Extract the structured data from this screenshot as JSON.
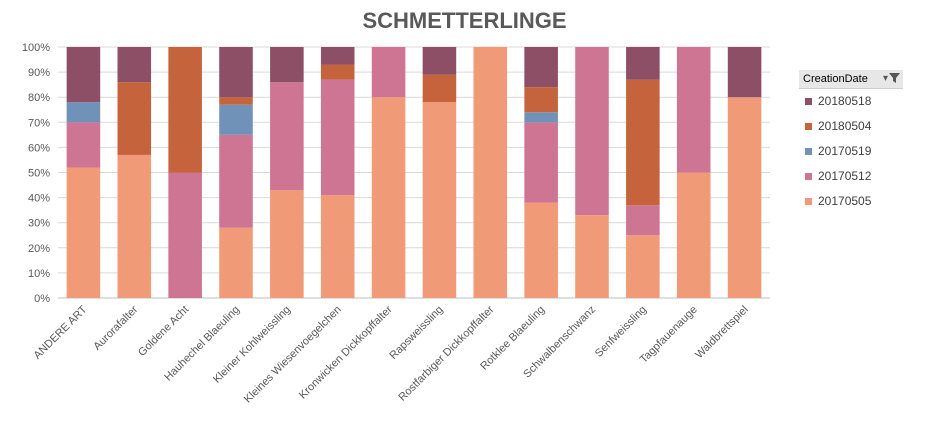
{
  "legend": {
    "title": "CreationDate",
    "filter_icon": "filter-dropdown-icon",
    "items": [
      {
        "label": "20180518",
        "color": "#8c4f66"
      },
      {
        "label": "20180504",
        "color": "#c5643c"
      },
      {
        "label": "20170519",
        "color": "#7192b8"
      },
      {
        "label": "20170512",
        "color": "#cd7592"
      },
      {
        "label": "20170505",
        "color": "#f19a78"
      }
    ]
  },
  "chart_data": {
    "type": "bar",
    "stacked": "percent",
    "title": "SCHMETTERLINGE",
    "xlabel": "",
    "ylabel": "",
    "ylim": [
      0,
      100
    ],
    "yticks": [
      "0%",
      "10%",
      "20%",
      "30%",
      "40%",
      "50%",
      "60%",
      "70%",
      "80%",
      "90%",
      "100%"
    ],
    "grid": true,
    "legend_position": "right",
    "categories": [
      "ANDERE ART",
      "Aurorafalter",
      "Goldene Acht",
      "Hauhechel Blaeuling",
      "Kleiner Kohlweissling",
      "Kleines Wiesenvoegelchen",
      "Kronwicken Dickkopffalter",
      "Rapsweissling",
      "Rostfarbiger Dickkopffalter",
      "Rotklee Blaeuling",
      "Schwalbenschwanz",
      "Senfweissling",
      "Tagpfauenauge",
      "Waldbrettspiel"
    ],
    "series": [
      {
        "name": "20170505",
        "color": "#f19a78",
        "values": [
          52,
          57,
          0,
          28,
          43,
          41,
          80,
          78,
          100,
          38,
          33,
          25,
          50,
          80
        ]
      },
      {
        "name": "20170512",
        "color": "#cd7592",
        "values": [
          18,
          0,
          50,
          37,
          43,
          46,
          20,
          0,
          0,
          32,
          67,
          12,
          50,
          0
        ]
      },
      {
        "name": "20170519",
        "color": "#7192b8",
        "values": [
          8,
          0,
          0,
          12,
          0,
          0,
          0,
          0,
          0,
          4,
          0,
          0,
          0,
          0
        ]
      },
      {
        "name": "20180504",
        "color": "#c5643c",
        "values": [
          0,
          29,
          50,
          3,
          0,
          6,
          0,
          11,
          0,
          10,
          0,
          50,
          0,
          0
        ]
      },
      {
        "name": "20180518",
        "color": "#8c4f66",
        "values": [
          22,
          14,
          0,
          20,
          14,
          7,
          0,
          11,
          0,
          16,
          0,
          13,
          0,
          20
        ]
      }
    ]
  }
}
